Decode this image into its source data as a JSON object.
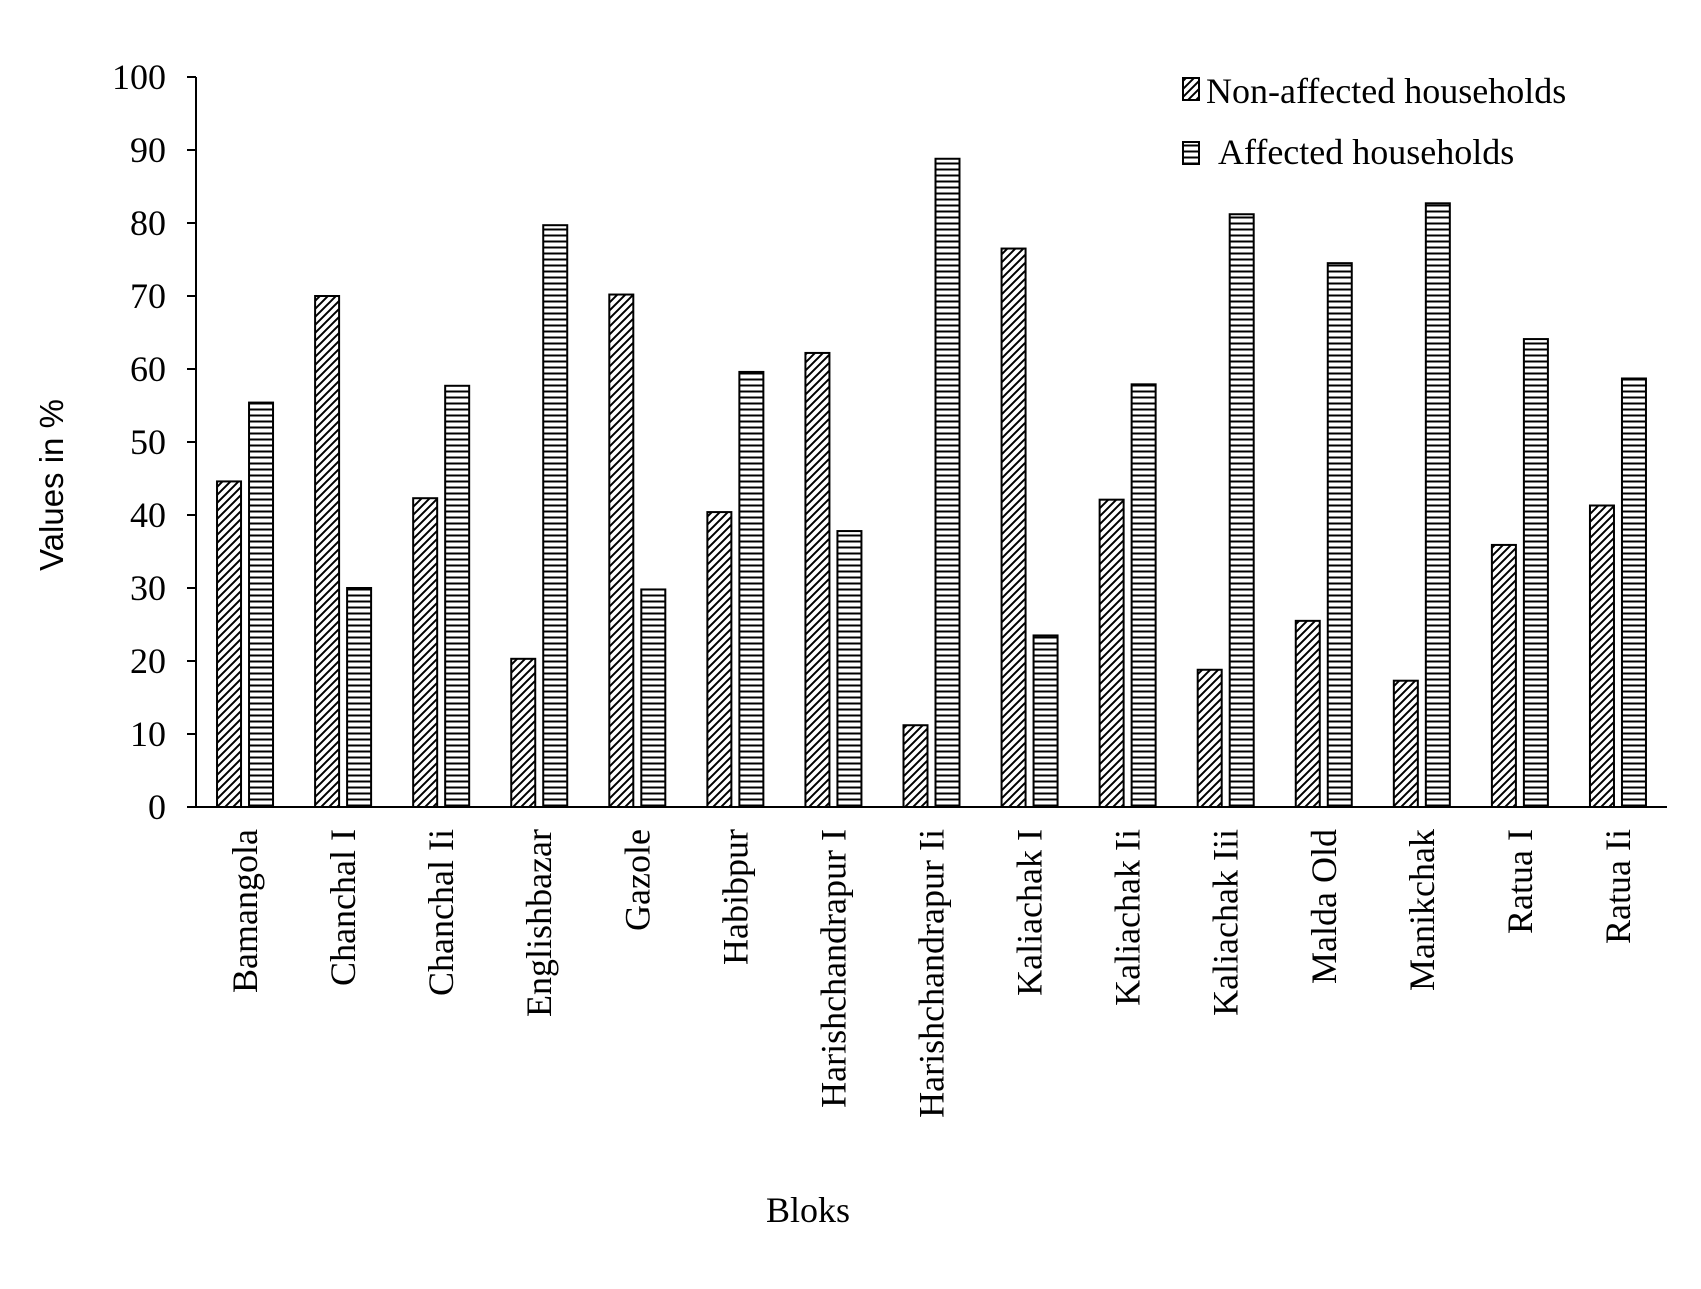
{
  "chart_data": {
    "type": "bar",
    "title": "",
    "xlabel": "Bloks",
    "ylabel": "Values in %",
    "ylim": [
      0,
      100
    ],
    "yticks": [
      "0",
      "10",
      "20",
      "30",
      "40",
      "50",
      "60",
      "70",
      "80",
      "90",
      "100"
    ],
    "grid": false,
    "legend_position": "top-right",
    "categories": [
      "Bamangola",
      "Chanchal I",
      "Chanchal Ii",
      "Englishbazar",
      "Gazole",
      "Habibpur",
      "Harishchandrapur I",
      "Harishchandrapur Ii",
      "Kaliachak I",
      "Kaliachak Ii",
      "Kaliachak Iii",
      "Malda Old",
      "Manikchak",
      "Ratua I",
      "Ratua Ii"
    ],
    "series": [
      {
        "name": "Non-affected households",
        "pattern": "diagonal-hatch",
        "values": [
          44.6,
          70.0,
          42.3,
          20.3,
          70.2,
          40.4,
          62.2,
          11.2,
          76.5,
          42.1,
          18.8,
          25.5,
          17.3,
          35.9,
          41.3
        ]
      },
      {
        "name": "Affected households",
        "pattern": "horizontal-hatch",
        "values": [
          55.4,
          30.0,
          57.7,
          79.7,
          29.8,
          59.6,
          37.8,
          88.8,
          23.5,
          57.9,
          81.2,
          74.5,
          82.7,
          64.1,
          58.7
        ]
      }
    ]
  },
  "colors": {
    "ink": "#000000",
    "background": "#ffffff"
  }
}
